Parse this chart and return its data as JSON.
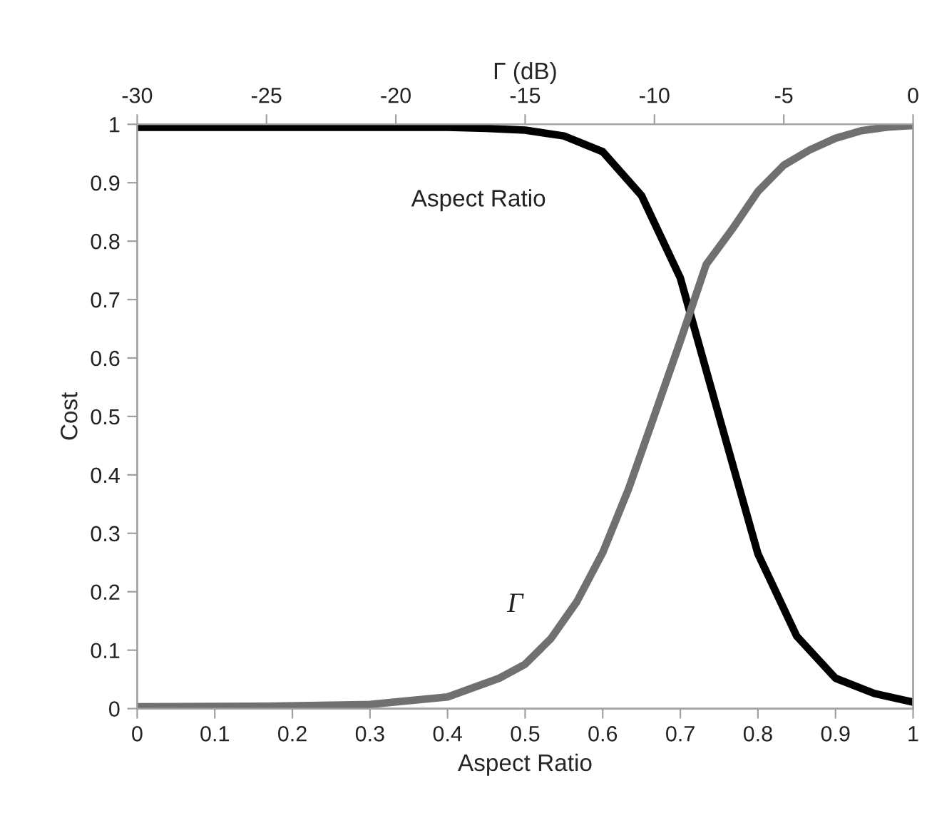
{
  "chart_data": {
    "type": "line",
    "xlabel": "Aspect Ratio",
    "ylabel": "Cost",
    "x2label": "Γ (dB)",
    "xlim": [
      0,
      1
    ],
    "xticks": [
      0,
      0.1,
      0.2,
      0.3,
      0.4,
      0.5,
      0.6,
      0.7,
      0.8,
      0.9,
      1
    ],
    "ylim": [
      0,
      1
    ],
    "yticks": [
      0,
      0.1,
      0.2,
      0.3,
      0.4,
      0.5,
      0.6,
      0.7,
      0.8,
      0.9,
      1
    ],
    "x2lim": [
      -30,
      0
    ],
    "x2ticks": [
      -30,
      -25,
      -20,
      -15,
      -10,
      -5,
      0
    ],
    "grid": false,
    "legend": false,
    "marker": "none",
    "line_style": "solid",
    "series": [
      {
        "color": "#000000",
        "x": [
          0,
          0.05,
          0.1,
          0.15,
          0.2,
          0.25,
          0.3,
          0.35,
          0.4,
          0.45,
          0.5,
          0.55,
          0.6,
          0.65,
          0.7,
          0.75,
          0.8,
          0.85,
          0.9,
          0.95,
          1
        ],
        "values": [
          0.995,
          0.995,
          0.995,
          0.995,
          0.995,
          0.995,
          0.995,
          0.995,
          0.995,
          0.993,
          0.99,
          0.98,
          0.953,
          0.878,
          0.737,
          0.5,
          0.265,
          0.124,
          0.052,
          0.026,
          0.011
        ]
      },
      {
        "color": "#707070",
        "axis": "x2",
        "x": [
          -30,
          -25,
          -21,
          -18,
          -16,
          -15,
          -14,
          -13,
          -12,
          -11,
          -10,
          -9,
          -8,
          -7,
          -6,
          -5,
          -4,
          -3,
          -2,
          -1,
          0
        ],
        "values": [
          0.003,
          0.004,
          0.007,
          0.02,
          0.052,
          0.076,
          0.12,
          0.183,
          0.267,
          0.376,
          0.502,
          0.629,
          0.76,
          0.82,
          0.885,
          0.93,
          0.956,
          0.976,
          0.989,
          0.995,
          0.998
        ]
      }
    ],
    "annotations": [
      "Aspect Ratio",
      "Γ"
    ]
  }
}
